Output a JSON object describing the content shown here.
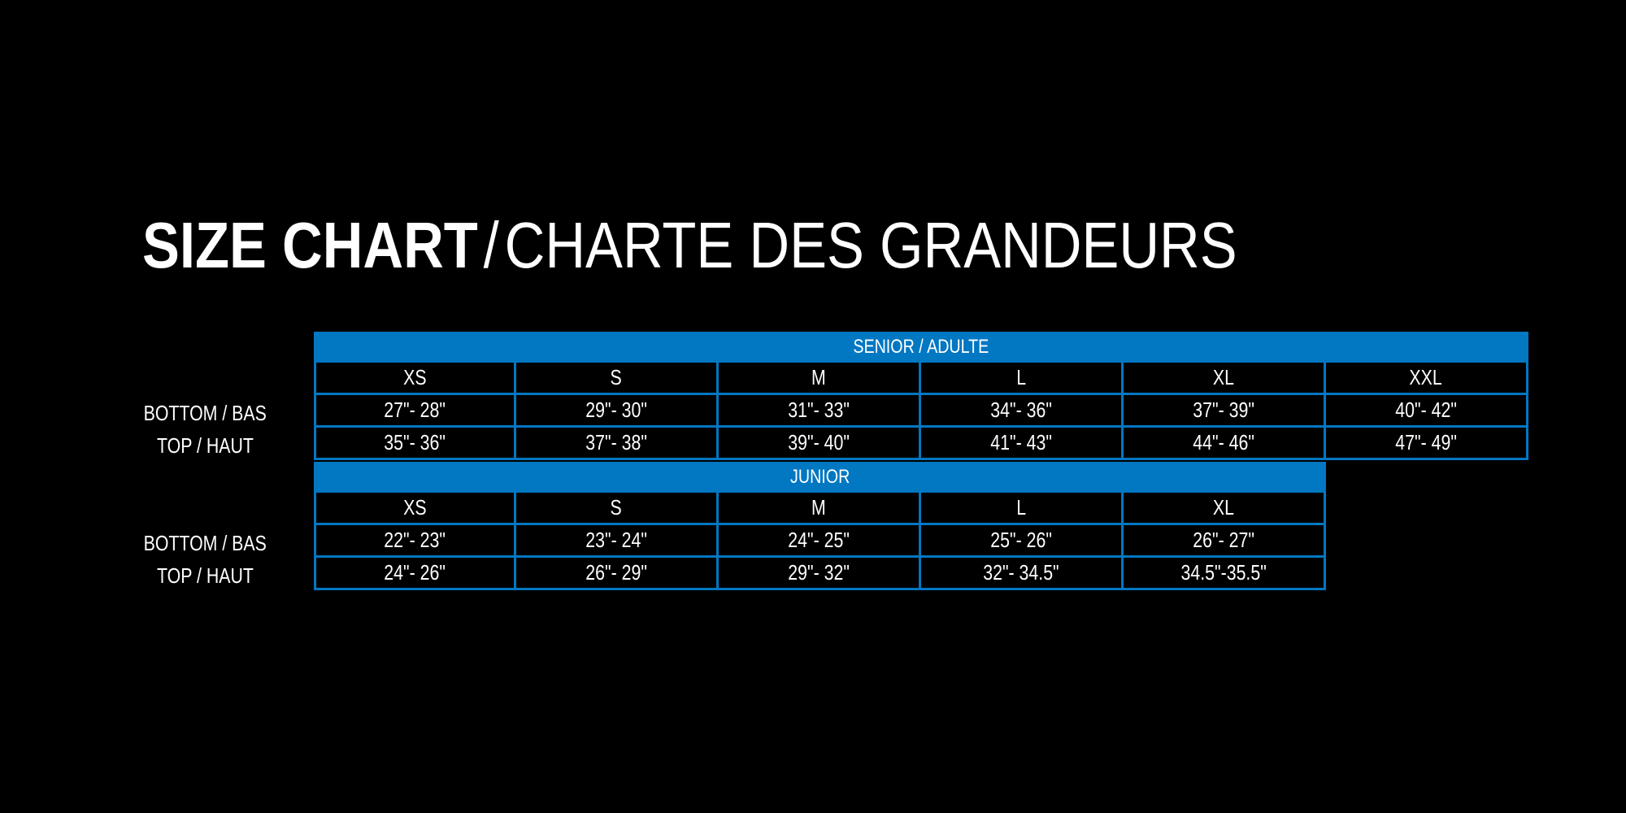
{
  "title": {
    "bold": "SIZE CHART",
    "separator": "/",
    "rest": "CHARTE DES GRANDEURS"
  },
  "colors": {
    "accent": "#0277c2",
    "background": "#000000",
    "text": "#ffffff"
  },
  "row_labels": {
    "bottom": "BOTTOM / BAS",
    "top": "TOP / HAUT"
  },
  "senior": {
    "header": "SENIOR / ADULTE",
    "sizes": [
      "XS",
      "S",
      "M",
      "L",
      "XL",
      "XXL"
    ],
    "bottom": [
      "27\"- 28\"",
      "29\"- 30\"",
      "31\"- 33\"",
      "34\"- 36\"",
      "37\"- 39\"",
      "40\"- 42\""
    ],
    "top": [
      "35\"- 36\"",
      "37\"- 38\"",
      "39\"- 40\"",
      "41\"- 43\"",
      "44\"- 46\"",
      "47\"- 49\""
    ]
  },
  "junior": {
    "header": "JUNIOR",
    "sizes": [
      "XS",
      "S",
      "M",
      "L",
      "XL"
    ],
    "bottom": [
      "22\"- 23\"",
      "23\"- 24\"",
      "24\"- 25\"",
      "25\"- 26\"",
      "26\"- 27\""
    ],
    "top": [
      "24\"- 26\"",
      "26\"- 29\"",
      "29\"- 32\"",
      "32\"- 34.5\"",
      "34.5\"-35.5\""
    ]
  }
}
